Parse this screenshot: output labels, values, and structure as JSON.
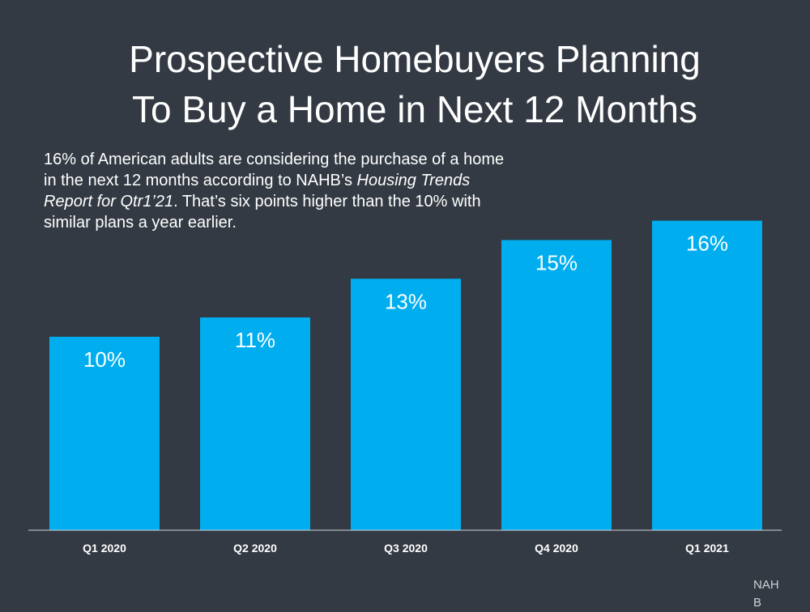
{
  "title_lines": [
    "Prospective Homebuyers Planning",
    "To Buy a Home in Next 12 Months"
  ],
  "subtitle": {
    "part1": "16% of American adults are considering the purchase of a home in the next 12 months according to NAHB’s ",
    "italic": "Housing Trends Report for Qtr1’21",
    "part2": ". That’s six points higher than the 10% with similar plans a year earlier."
  },
  "source": "NAHB",
  "colors": {
    "background": "#333a43",
    "bar": "#00aeef",
    "text": "#ffffff",
    "axis": "#cfd3d8"
  },
  "chart_data": {
    "type": "bar",
    "title": "Prospective Homebuyers Planning To Buy a Home in Next 12 Months",
    "categories": [
      "Q1 2020",
      "Q2 2020",
      "Q3 2020",
      "Q4 2020",
      "Q1 2021"
    ],
    "values": [
      10,
      11,
      13,
      15,
      16
    ],
    "data_labels": [
      "10%",
      "11%",
      "13%",
      "15%",
      "16%"
    ],
    "ylim": [
      0,
      16
    ],
    "grid": false,
    "legend": "none"
  }
}
